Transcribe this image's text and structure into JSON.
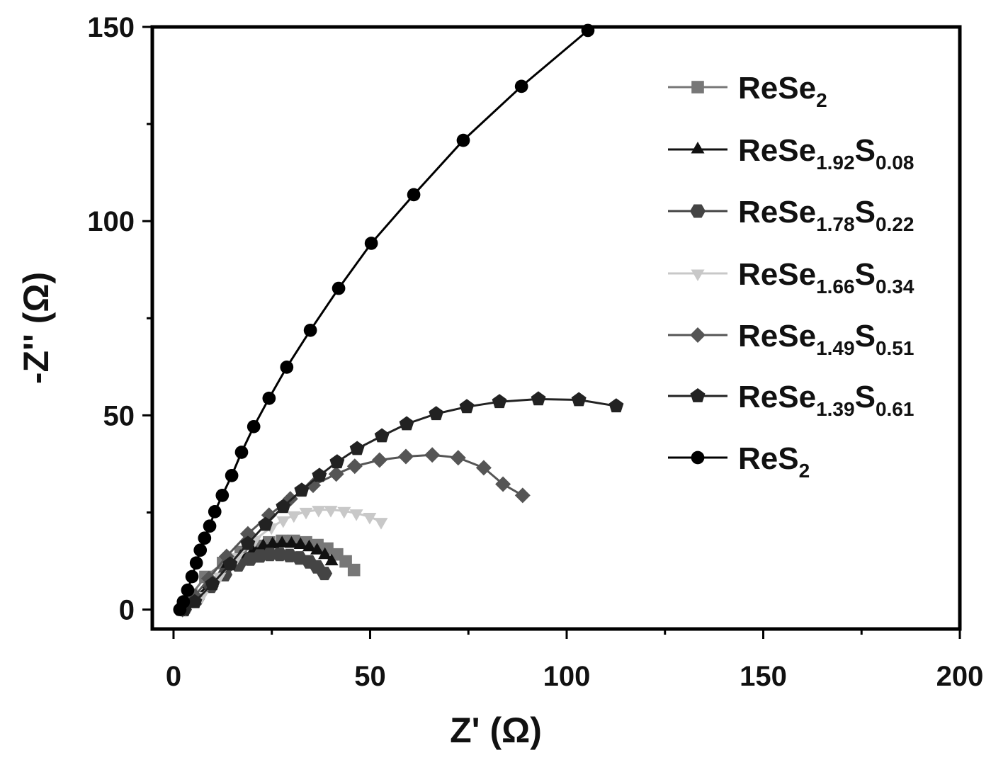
{
  "chart_data": {
    "type": "scatter",
    "xlabel": "Z' (Ω)",
    "ylabel": "-Z'' (Ω)",
    "xlim": [
      -5.4,
      200
    ],
    "ylim": [
      -5,
      150
    ],
    "xticks": [
      0,
      50,
      100,
      150,
      200
    ],
    "yticks": [
      0,
      50,
      100,
      150
    ],
    "grid": false,
    "legend_position": "top-right",
    "series": [
      {
        "name": "ReSe2",
        "color": "#777777",
        "marker": "square",
        "x": [
          2.3,
          4.5,
          8.1,
          12.6,
          17.1,
          21.1,
          24.3,
          27.6,
          30.6,
          33.7,
          36.6,
          39.1,
          41.6,
          43.8,
          45.9
        ],
        "y": [
          0,
          3.8,
          8.4,
          12.0,
          14.8,
          16.4,
          17.3,
          17.7,
          17.7,
          17.3,
          16.6,
          15.7,
          14.2,
          12.4,
          10.2
        ]
      },
      {
        "name": "ReSe1.92S0.08",
        "color": "#111111",
        "marker": "triangle-up",
        "x": [
          2.5,
          5.5,
          9,
          13,
          17,
          20.4,
          22.8,
          25.2,
          27.6,
          30,
          32.3,
          34.5,
          36.5,
          38.5,
          40.2
        ],
        "y": [
          0,
          3,
          6.5,
          10.5,
          13.5,
          15.4,
          16.3,
          16.8,
          17,
          16.9,
          16.6,
          16,
          15.2,
          14,
          12.4
        ]
      },
      {
        "name": "ReSe1.78S0.22",
        "color": "#444444",
        "marker": "hexagon",
        "x": [
          2.7,
          6,
          9.5,
          13,
          16.5,
          19.5,
          22,
          24.5,
          27,
          29.5,
          32,
          34.5,
          36.5,
          38.4
        ],
        "y": [
          0,
          2.8,
          6,
          9,
          11.5,
          13,
          13.8,
          14.2,
          14.2,
          13.9,
          13.3,
          12.3,
          11,
          9.3
        ]
      },
      {
        "name": "ReSe1.66S0.34",
        "color": "#c8c8c8",
        "marker": "triangle-down",
        "x": [
          3.1,
          7.2,
          11.7,
          16.2,
          20.7,
          24.9,
          27.9,
          30.6,
          33.7,
          36.9,
          40,
          43.4,
          46.5,
          49.9,
          52.8
        ],
        "y": [
          0,
          3.5,
          8.5,
          13.5,
          18,
          21.2,
          23,
          24.3,
          25.2,
          25.7,
          25.7,
          25.4,
          24.8,
          23.9,
          22.6
        ]
      },
      {
        "name": "ReSe1.49S0.51",
        "color": "#555555",
        "marker": "diamond",
        "x": [
          2.3,
          5.4,
          9,
          13.5,
          18.9,
          24.3,
          29.7,
          35.5,
          41.4,
          46.1,
          52.4,
          59.1,
          65.8,
          72.4,
          78.9,
          83.8,
          88.8
        ],
        "y": [
          0,
          3.5,
          8,
          13.7,
          19.5,
          24.3,
          28.5,
          32,
          34.9,
          36.9,
          38.5,
          39.4,
          39.8,
          39.1,
          36.5,
          32.3,
          29.4
        ]
      },
      {
        "name": "ReSe1.39S0.61",
        "color": "#222222",
        "marker": "pentagon",
        "x": [
          2.7,
          5.4,
          9.9,
          14.4,
          18.9,
          23.4,
          27.9,
          32.6,
          37.1,
          41.6,
          46.7,
          53,
          59.3,
          66.8,
          74.6,
          82.9,
          92.8,
          103.1,
          112.6
        ],
        "y": [
          0,
          2,
          6.6,
          11.7,
          17,
          21.9,
          26.5,
          30.7,
          34.5,
          38,
          41.4,
          44.7,
          47.8,
          50.4,
          52.2,
          53.5,
          54.2,
          54,
          52.4
        ]
      },
      {
        "name": "ReS2",
        "color": "#000000",
        "marker": "circle",
        "x": [
          1.6,
          2.5,
          3.6,
          4.7,
          5.8,
          6.8,
          7.9,
          9.2,
          10.5,
          12.4,
          14.8,
          17.3,
          20.4,
          24.3,
          28.8,
          34.8,
          42.0,
          50.3,
          61.1,
          73.7,
          88.5,
          105.4
        ],
        "y": [
          0,
          2,
          5,
          8.5,
          12,
          15.3,
          18.4,
          21.5,
          25.2,
          29.4,
          34.5,
          40.5,
          47.1,
          54.4,
          62.4,
          71.9,
          82.7,
          94.3,
          106.8,
          120.8,
          134.7,
          149.1
        ]
      }
    ]
  }
}
